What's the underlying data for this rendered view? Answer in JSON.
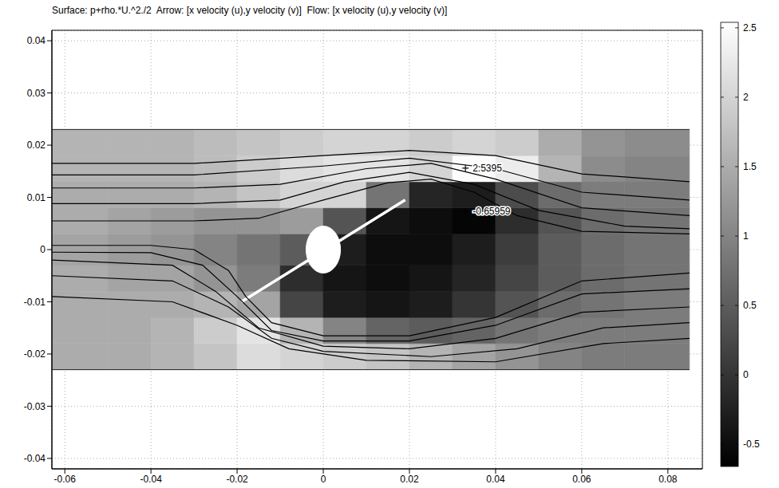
{
  "chart_data": {
    "type": "heatmap",
    "title": "Surface: p+rho.*U.^2./2  Arrow: [x velocity (u),y velocity (v)]  Flow: [x velocity (u),y velocity (v)]",
    "xlim": [
      -0.063,
      0.088
    ],
    "ylim": [
      -0.042,
      0.042
    ],
    "xticks": [
      -0.06,
      -0.04,
      -0.02,
      0,
      0.02,
      0.04,
      0.06,
      0.08
    ],
    "yticks": [
      -0.04,
      -0.03,
      -0.02,
      -0.01,
      0,
      0.01,
      0.02,
      0.03,
      0.04
    ],
    "grid": true,
    "color": "gray",
    "x_edges": [
      -0.063,
      -0.05,
      -0.04,
      -0.03,
      -0.02,
      -0.01,
      0,
      0.01,
      0.02,
      0.03,
      0.04,
      0.05,
      0.06,
      0.07,
      0.085
    ],
    "y_edges": [
      -0.023,
      -0.018,
      -0.013,
      -0.008,
      -0.003,
      0.003,
      0.008,
      0.013,
      0.018,
      0.023
    ],
    "cells": [
      [
        1.5,
        1.5,
        1.6,
        1.8,
        2.1,
        2.0,
        1.9,
        1.8,
        1.6,
        1.4,
        1.2,
        1.0,
        0.9,
        0.9
      ],
      [
        1.5,
        1.5,
        1.6,
        1.9,
        2.2,
        1.6,
        1.0,
        0.6,
        0.5,
        0.6,
        0.8,
        0.9,
        0.9,
        0.9
      ],
      [
        1.5,
        1.5,
        1.5,
        1.6,
        1.4,
        0.2,
        -0.3,
        -0.4,
        -0.3,
        0.0,
        0.4,
        0.7,
        0.8,
        0.9
      ],
      [
        1.5,
        1.4,
        1.4,
        1.2,
        0.9,
        -0.1,
        -0.4,
        -0.5,
        -0.4,
        -0.2,
        0.2,
        0.5,
        0.7,
        0.8
      ],
      [
        1.4,
        1.3,
        1.2,
        1.0,
        0.8,
        0.5,
        -0.3,
        -0.5,
        -0.5,
        -0.3,
        0.1,
        0.5,
        0.7,
        0.8
      ],
      [
        1.5,
        1.4,
        1.3,
        1.2,
        1.2,
        1.3,
        0.4,
        -0.4,
        -0.5,
        -0.6,
        -0.1,
        0.4,
        0.7,
        0.8
      ],
      [
        1.5,
        1.5,
        1.5,
        1.6,
        1.8,
        2.0,
        2.0,
        0.8,
        -0.2,
        -0.3,
        0.3,
        0.7,
        0.9,
        0.9
      ],
      [
        1.6,
        1.6,
        1.6,
        1.7,
        1.9,
        2.1,
        2.2,
        2.2,
        2.0,
        2.5,
        2.3,
        1.6,
        1.1,
        1.0
      ],
      [
        1.6,
        1.6,
        1.6,
        1.7,
        1.8,
        1.9,
        2.0,
        2.0,
        1.9,
        2.0,
        1.9,
        1.5,
        1.2,
        1.1
      ]
    ],
    "colorbar": {
      "range": [
        -0.65959,
        2.5395
      ],
      "ticks": [
        -0.5,
        0,
        0.5,
        1,
        1.5,
        2,
        2.5
      ]
    },
    "streamlines": [
      {
        "x": [
          -0.063,
          -0.03,
          0,
          0.02,
          0.04,
          0.06,
          0.085
        ],
        "y": [
          0.0165,
          0.0165,
          0.018,
          0.019,
          0.018,
          0.0145,
          0.013
        ]
      },
      {
        "x": [
          -0.063,
          -0.03,
          0,
          0.02,
          0.04,
          0.06,
          0.085
        ],
        "y": [
          0.0143,
          0.0143,
          0.016,
          0.0175,
          0.0155,
          0.011,
          0.0095
        ]
      },
      {
        "x": [
          -0.063,
          -0.03,
          -0.01,
          0.01,
          0.025,
          0.04,
          0.06,
          0.085
        ],
        "y": [
          0.0118,
          0.0118,
          0.0125,
          0.0155,
          0.0165,
          0.0135,
          0.008,
          0.0065
        ]
      },
      {
        "x": [
          -0.063,
          -0.03,
          -0.01,
          0.005,
          0.02,
          0.035,
          0.05,
          0.07,
          0.085
        ],
        "y": [
          0.0088,
          0.0088,
          0.0095,
          0.013,
          0.0148,
          0.0125,
          0.0075,
          0.0045,
          0.004
        ]
      },
      {
        "x": [
          -0.063,
          -0.03,
          -0.015,
          0,
          0.015,
          0.025,
          0.035,
          0.045,
          0.06,
          0.085
        ],
        "y": [
          0.0055,
          0.0055,
          0.006,
          0.0095,
          0.0128,
          0.0135,
          0.011,
          0.0065,
          0.0035,
          0.003
        ]
      },
      {
        "x": [
          -0.063,
          -0.04,
          -0.03,
          -0.022,
          -0.018,
          -0.012,
          0,
          0.02,
          0.04,
          0.06,
          0.085
        ],
        "y": [
          0.0008,
          0.0008,
          0.0,
          -0.004,
          -0.009,
          -0.014,
          -0.0165,
          -0.0165,
          -0.013,
          -0.006,
          -0.0045
        ]
      },
      {
        "x": [
          -0.063,
          -0.04,
          -0.028,
          -0.02,
          -0.012,
          0,
          0.02,
          0.04,
          0.06,
          0.085
        ],
        "y": [
          -0.0005,
          -0.0006,
          -0.003,
          -0.009,
          -0.0155,
          -0.0175,
          -0.0175,
          -0.0145,
          -0.0085,
          -0.0075
        ]
      },
      {
        "x": [
          -0.063,
          -0.035,
          -0.025,
          -0.015,
          0,
          0.02,
          0.04,
          0.06,
          0.085
        ],
        "y": [
          -0.002,
          -0.003,
          -0.008,
          -0.015,
          -0.0185,
          -0.019,
          -0.017,
          -0.012,
          -0.011
        ]
      },
      {
        "x": [
          -0.063,
          -0.035,
          -0.022,
          -0.012,
          0,
          0.025,
          0.045,
          0.065,
          0.085
        ],
        "y": [
          -0.005,
          -0.006,
          -0.011,
          -0.017,
          -0.0195,
          -0.0205,
          -0.019,
          -0.015,
          -0.014
        ]
      },
      {
        "x": [
          -0.063,
          -0.035,
          -0.02,
          -0.008,
          0.01,
          0.04,
          0.065,
          0.085
        ],
        "y": [
          -0.009,
          -0.01,
          -0.0145,
          -0.019,
          -0.0212,
          -0.0215,
          -0.018,
          -0.017
        ]
      }
    ],
    "obstacle": {
      "center": [
        0,
        0
      ],
      "semi_axes": [
        0.004,
        0.0045
      ]
    },
    "plate": {
      "x": [
        -0.019,
        0.019
      ],
      "y": [
        -0.01,
        0.0095
      ]
    },
    "annotations": [
      {
        "x": 0.033,
        "y": 0.0156,
        "value": 2.5395
      },
      {
        "x": 0.033,
        "y": 0.0073,
        "value": -0.65959
      }
    ]
  }
}
